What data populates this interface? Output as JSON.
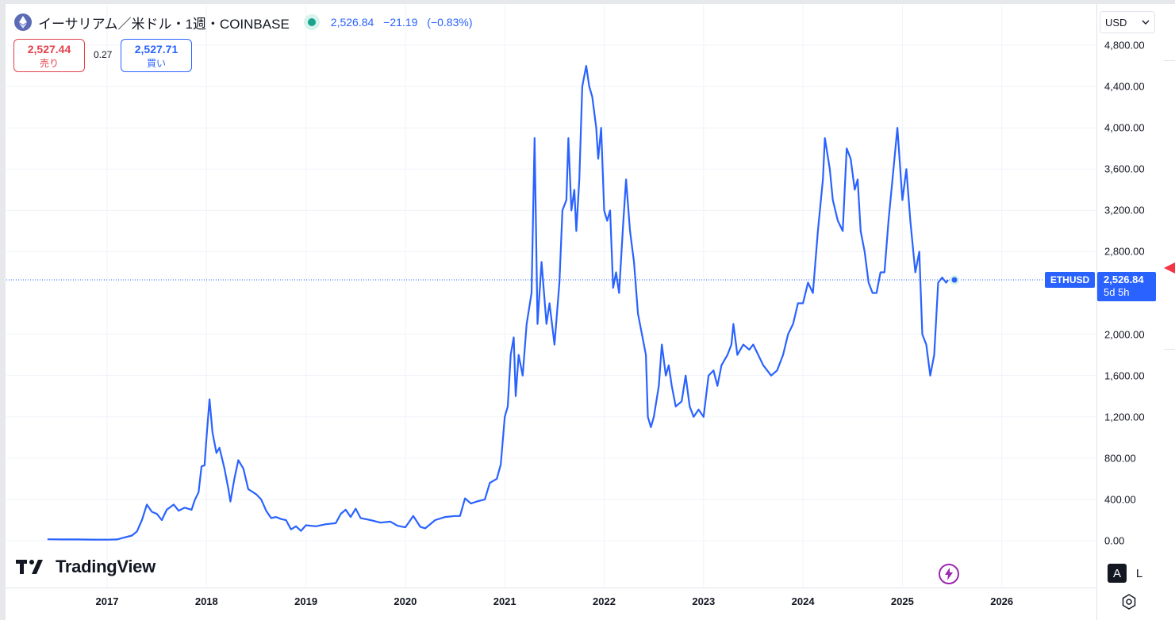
{
  "header": {
    "title": "イーサリアム／米ドル・1週・COINBASE",
    "last": "2,526.84",
    "change": "−21.19",
    "change_pct": "(−0.83%)",
    "accent_color": "#2962ff"
  },
  "trade": {
    "sell_price": "2,527.44",
    "sell_label": "売り",
    "spread": "0.27",
    "buy_price": "2,527.71",
    "buy_label": "買い"
  },
  "axis_controls": {
    "currency": "USD",
    "auto_label": "A",
    "log_label": "L"
  },
  "price_tag": {
    "symbol": "ETHUSD",
    "value": "2,526.84",
    "countdown": "5d 5h"
  },
  "branding": {
    "logo_text": "TradingView"
  },
  "icons": [
    "ethereum-icon",
    "live-status-icon",
    "flash-icon",
    "settings-icon",
    "chevron-down-icon"
  ],
  "chart_data": {
    "type": "line",
    "series": [
      {
        "color": "#2962ff",
        "points": [
          [
            2016.4,
            14
          ],
          [
            2016.55,
            12
          ],
          [
            2016.7,
            12
          ],
          [
            2016.85,
            11
          ],
          [
            2017.0,
            10
          ],
          [
            2017.1,
            12
          ],
          [
            2017.17,
            30
          ],
          [
            2017.25,
            50
          ],
          [
            2017.3,
            90
          ],
          [
            2017.35,
            200
          ],
          [
            2017.4,
            350
          ],
          [
            2017.45,
            280
          ],
          [
            2017.5,
            260
          ],
          [
            2017.55,
            200
          ],
          [
            2017.6,
            300
          ],
          [
            2017.67,
            350
          ],
          [
            2017.72,
            290
          ],
          [
            2017.78,
            320
          ],
          [
            2017.85,
            300
          ],
          [
            2017.88,
            390
          ],
          [
            2017.92,
            470
          ],
          [
            2017.95,
            720
          ],
          [
            2017.98,
            730
          ],
          [
            2018.0,
            1000
          ],
          [
            2018.03,
            1370
          ],
          [
            2018.06,
            1050
          ],
          [
            2018.1,
            850
          ],
          [
            2018.13,
            900
          ],
          [
            2018.18,
            700
          ],
          [
            2018.22,
            500
          ],
          [
            2018.24,
            380
          ],
          [
            2018.28,
            600
          ],
          [
            2018.32,
            780
          ],
          [
            2018.37,
            700
          ],
          [
            2018.42,
            500
          ],
          [
            2018.5,
            450
          ],
          [
            2018.55,
            400
          ],
          [
            2018.6,
            290
          ],
          [
            2018.65,
            220
          ],
          [
            2018.7,
            230
          ],
          [
            2018.75,
            210
          ],
          [
            2018.8,
            200
          ],
          [
            2018.85,
            110
          ],
          [
            2018.9,
            140
          ],
          [
            2018.95,
            95
          ],
          [
            2019.0,
            150
          ],
          [
            2019.1,
            140
          ],
          [
            2019.2,
            160
          ],
          [
            2019.3,
            170
          ],
          [
            2019.35,
            260
          ],
          [
            2019.4,
            300
          ],
          [
            2019.45,
            230
          ],
          [
            2019.5,
            310
          ],
          [
            2019.55,
            220
          ],
          [
            2019.65,
            200
          ],
          [
            2019.75,
            175
          ],
          [
            2019.85,
            185
          ],
          [
            2019.92,
            145
          ],
          [
            2020.0,
            130
          ],
          [
            2020.08,
            240
          ],
          [
            2020.15,
            135
          ],
          [
            2020.2,
            120
          ],
          [
            2020.3,
            200
          ],
          [
            2020.4,
            230
          ],
          [
            2020.5,
            240
          ],
          [
            2020.55,
            240
          ],
          [
            2020.6,
            410
          ],
          [
            2020.66,
            360
          ],
          [
            2020.72,
            380
          ],
          [
            2020.8,
            400
          ],
          [
            2020.85,
            560
          ],
          [
            2020.92,
            600
          ],
          [
            2020.96,
            740
          ],
          [
            2021.0,
            1200
          ],
          [
            2021.03,
            1300
          ],
          [
            2021.06,
            1800
          ],
          [
            2021.09,
            1970
          ],
          [
            2021.11,
            1400
          ],
          [
            2021.14,
            1800
          ],
          [
            2021.18,
            1600
          ],
          [
            2021.22,
            2100
          ],
          [
            2021.27,
            2400
          ],
          [
            2021.3,
            3900
          ],
          [
            2021.33,
            2100
          ],
          [
            2021.37,
            2700
          ],
          [
            2021.42,
            2100
          ],
          [
            2021.45,
            2300
          ],
          [
            2021.5,
            1900
          ],
          [
            2021.55,
            2500
          ],
          [
            2021.58,
            3200
          ],
          [
            2021.62,
            3300
          ],
          [
            2021.64,
            3900
          ],
          [
            2021.67,
            3200
          ],
          [
            2021.7,
            3400
          ],
          [
            2021.72,
            3000
          ],
          [
            2021.75,
            3500
          ],
          [
            2021.78,
            4400
          ],
          [
            2021.82,
            4600
          ],
          [
            2021.85,
            4400
          ],
          [
            2021.88,
            4300
          ],
          [
            2021.92,
            4000
          ],
          [
            2021.94,
            3700
          ],
          [
            2021.97,
            4000
          ],
          [
            2022.0,
            3200
          ],
          [
            2022.03,
            3100
          ],
          [
            2022.06,
            3200
          ],
          [
            2022.09,
            2450
          ],
          [
            2022.12,
            2600
          ],
          [
            2022.15,
            2400
          ],
          [
            2022.19,
            3050
          ],
          [
            2022.22,
            3500
          ],
          [
            2022.26,
            3000
          ],
          [
            2022.3,
            2700
          ],
          [
            2022.34,
            2200
          ],
          [
            2022.38,
            2000
          ],
          [
            2022.42,
            1800
          ],
          [
            2022.44,
            1200
          ],
          [
            2022.47,
            1100
          ],
          [
            2022.5,
            1200
          ],
          [
            2022.55,
            1500
          ],
          [
            2022.58,
            1900
          ],
          [
            2022.62,
            1600
          ],
          [
            2022.65,
            1700
          ],
          [
            2022.68,
            1500
          ],
          [
            2022.72,
            1300
          ],
          [
            2022.78,
            1350
          ],
          [
            2022.82,
            1600
          ],
          [
            2022.86,
            1300
          ],
          [
            2022.9,
            1200
          ],
          [
            2022.95,
            1270
          ],
          [
            2023.0,
            1200
          ],
          [
            2023.05,
            1600
          ],
          [
            2023.1,
            1650
          ],
          [
            2023.14,
            1500
          ],
          [
            2023.18,
            1700
          ],
          [
            2023.24,
            1800
          ],
          [
            2023.28,
            1900
          ],
          [
            2023.3,
            2100
          ],
          [
            2023.34,
            1800
          ],
          [
            2023.4,
            1900
          ],
          [
            2023.46,
            1850
          ],
          [
            2023.5,
            1900
          ],
          [
            2023.55,
            1800
          ],
          [
            2023.6,
            1700
          ],
          [
            2023.68,
            1600
          ],
          [
            2023.74,
            1650
          ],
          [
            2023.8,
            1800
          ],
          [
            2023.85,
            2000
          ],
          [
            2023.9,
            2100
          ],
          [
            2023.95,
            2300
          ],
          [
            2024.0,
            2300
          ],
          [
            2024.05,
            2500
          ],
          [
            2024.1,
            2400
          ],
          [
            2024.15,
            3000
          ],
          [
            2024.2,
            3500
          ],
          [
            2024.22,
            3900
          ],
          [
            2024.27,
            3600
          ],
          [
            2024.3,
            3300
          ],
          [
            2024.35,
            3100
          ],
          [
            2024.4,
            3000
          ],
          [
            2024.44,
            3800
          ],
          [
            2024.48,
            3700
          ],
          [
            2024.52,
            3400
          ],
          [
            2024.55,
            3500
          ],
          [
            2024.58,
            3000
          ],
          [
            2024.62,
            2800
          ],
          [
            2024.66,
            2500
          ],
          [
            2024.7,
            2400
          ],
          [
            2024.74,
            2400
          ],
          [
            2024.78,
            2600
          ],
          [
            2024.82,
            2600
          ],
          [
            2024.86,
            3100
          ],
          [
            2024.9,
            3500
          ],
          [
            2024.95,
            4000
          ],
          [
            2025.0,
            3300
          ],
          [
            2025.04,
            3600
          ],
          [
            2025.08,
            3100
          ],
          [
            2025.13,
            2600
          ],
          [
            2025.17,
            2800
          ],
          [
            2025.2,
            2000
          ],
          [
            2025.24,
            1900
          ],
          [
            2025.28,
            1600
          ],
          [
            2025.32,
            1800
          ],
          [
            2025.36,
            2500
          ],
          [
            2025.4,
            2550
          ],
          [
            2025.44,
            2500
          ],
          [
            2025.46,
            2527
          ]
        ]
      }
    ],
    "x_ticks": [
      "2017",
      "2018",
      "2019",
      "2020",
      "2021",
      "2022",
      "2023",
      "2024",
      "2025",
      "2026"
    ],
    "y_ticks": [
      "4,800.00",
      "4,400.00",
      "4,000.00",
      "3,600.00",
      "3,200.00",
      "2,800.00",
      "2,000.00",
      "1,600.00",
      "1,200.00",
      "800.00",
      "400.00",
      "0.00"
    ],
    "xlim": [
      2016.3,
      2026.95
    ],
    "ylim": [
      -100,
      4850
    ],
    "last_price": 2526.84,
    "grid": true
  }
}
